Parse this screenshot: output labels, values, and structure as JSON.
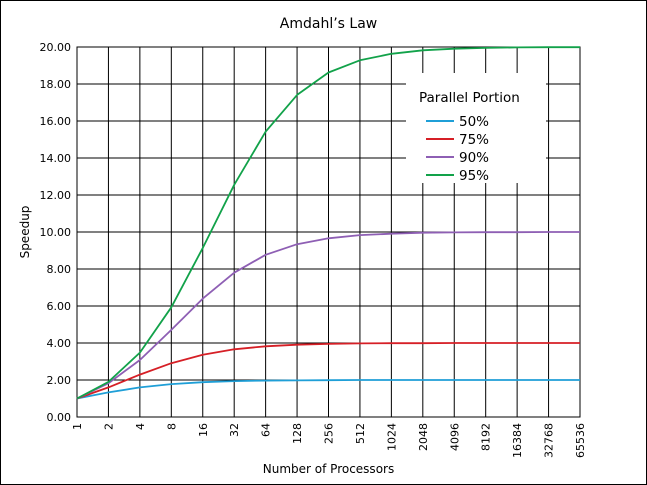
{
  "chart_data": {
    "type": "line",
    "title": "Amdahl’s Law",
    "xlabel": "Number of Processors",
    "ylabel": "Speedup",
    "x_scale": "log2",
    "x": [
      1,
      2,
      4,
      8,
      16,
      32,
      64,
      128,
      256,
      512,
      1024,
      2048,
      4096,
      8192,
      16384,
      32768,
      65536
    ],
    "x_tick_labels": [
      "1",
      "2",
      "4",
      "8",
      "16",
      "32",
      "64",
      "128",
      "256",
      "512",
      "1024",
      "2048",
      "4096",
      "8192",
      "16384",
      "32768",
      "65536"
    ],
    "ylim": [
      0,
      20
    ],
    "y_ticks": [
      0,
      2,
      4,
      6,
      8,
      10,
      12,
      14,
      16,
      18,
      20
    ],
    "y_tick_labels": [
      "0.00",
      "2.00",
      "4.00",
      "6.00",
      "8.00",
      "10.00",
      "12.00",
      "14.00",
      "16.00",
      "18.00",
      "20.00"
    ],
    "grid": true,
    "legend_position": "top-right",
    "legend_title": "Parallel Portion",
    "series": [
      {
        "name": "50%",
        "color": "#1f9fd7",
        "values": [
          1.0,
          1.33,
          1.6,
          1.78,
          1.88,
          1.94,
          1.97,
          1.98,
          1.99,
          2.0,
          2.0,
          2.0,
          2.0,
          2.0,
          2.0,
          2.0,
          2.0
        ]
      },
      {
        "name": "75%",
        "color": "#d61f26",
        "values": [
          1.0,
          1.6,
          2.29,
          2.91,
          3.37,
          3.66,
          3.82,
          3.91,
          3.95,
          3.98,
          3.99,
          3.99,
          4.0,
          4.0,
          4.0,
          4.0,
          4.0
        ]
      },
      {
        "name": "90%",
        "color": "#8e5fb4",
        "values": [
          1.0,
          1.82,
          3.08,
          4.71,
          6.4,
          7.8,
          8.77,
          9.34,
          9.66,
          9.83,
          9.91,
          9.96,
          9.98,
          9.99,
          9.99,
          10.0,
          10.0
        ]
      },
      {
        "name": "95%",
        "color": "#12a24a",
        "values": [
          1.0,
          1.9,
          3.48,
          5.93,
          9.14,
          12.55,
          15.42,
          17.41,
          18.62,
          19.28,
          19.63,
          19.82,
          19.91,
          19.95,
          19.98,
          19.99,
          19.99
        ]
      }
    ]
  }
}
